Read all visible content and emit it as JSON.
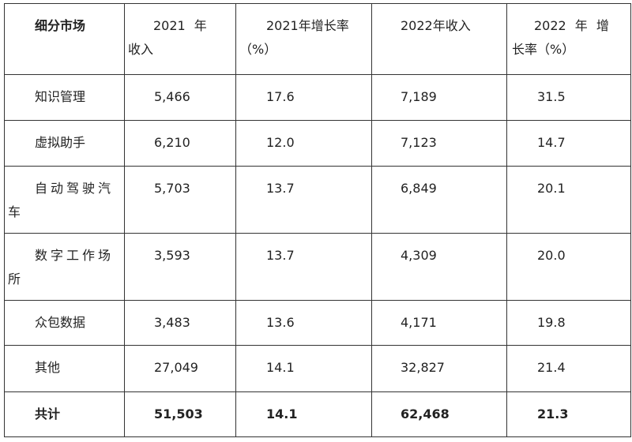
{
  "table": {
    "headers": [
      "细分市场",
      "2021 年 收入",
      "2021年增长率（%）",
      "2022年收入",
      "2022 年 增 长率（%）"
    ],
    "rows": [
      [
        "知识管理",
        "5,466",
        "17.6",
        "7,189",
        "31.5"
      ],
      [
        "虚拟助手",
        "6,210",
        "12.0",
        "7,123",
        "14.7"
      ],
      [
        "自动驾驶汽车",
        "5,703",
        "13.7",
        "6,849",
        "20.1"
      ],
      [
        "数字工作场所",
        "3,593",
        "13.7",
        "4,309",
        "20.0"
      ],
      [
        "众包数据",
        "3,483",
        "13.6",
        "4,171",
        "19.8"
      ],
      [
        "其他",
        "27,049",
        "14.1",
        "32,827",
        "21.4"
      ]
    ],
    "total": [
      "共计",
      "51,503",
      "14.1",
      "62,468",
      "21.3"
    ]
  }
}
